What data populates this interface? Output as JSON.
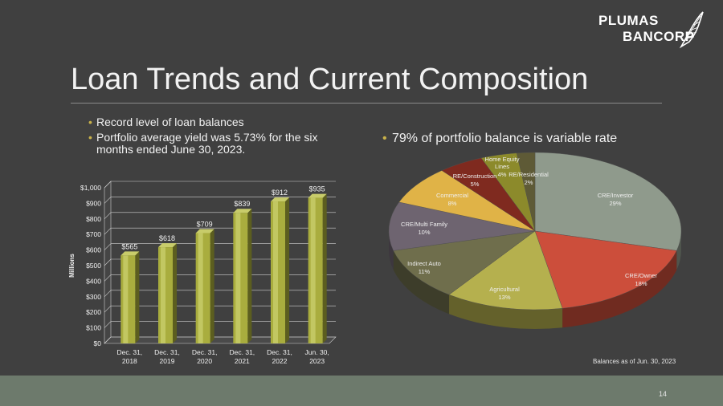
{
  "slide": {
    "title": "Loan Trends and Current Composition",
    "logo": {
      "line1": "PLUMAS",
      "line2": "BANCORP"
    },
    "bullets_left": [
      "Record level of loan balances",
      "Portfolio average yield was 5.73% for the six months ended June 30, 2023."
    ],
    "bullet_right": "79% of portfolio balance is variable rate",
    "note": "Balances as of Jun. 30, 2023",
    "page_number": "14"
  },
  "chart_data": [
    {
      "type": "bar",
      "categories": [
        "Dec. 31,|2018",
        "Dec. 31,|2019",
        "Dec. 31,|2020",
        "Dec. 31,|2021",
        "Dec. 31,|2022",
        "Jun. 30,|2023"
      ],
      "values": [
        565,
        618,
        709,
        839,
        912,
        935
      ],
      "data_labels": [
        "$565",
        "$618",
        "$709",
        "$839",
        "$912",
        "$935"
      ],
      "ylabel": "Millions",
      "ylim": [
        0,
        1000
      ],
      "yticks": [
        "$0",
        "$100",
        "$200",
        "$300",
        "$400",
        "$500",
        "$600",
        "$700",
        "$800",
        "$900",
        "$1,000"
      ],
      "grid": true,
      "bar_color": "#a9ad3e"
    },
    {
      "type": "pie",
      "slices": [
        {
          "label": "CRE/Investor",
          "value": 29,
          "pct": "29%",
          "color": "#8f9a8c"
        },
        {
          "label": "CRE/Owner",
          "value": 18,
          "pct": "18%",
          "color": "#cc4e3b"
        },
        {
          "label": "Agricultural",
          "value": 13,
          "pct": "13%",
          "color": "#b5b04e"
        },
        {
          "label": "Indirect Auto",
          "value": 11,
          "pct": "11%",
          "color": "#6f6e4c"
        },
        {
          "label": "CRE/Multi Family",
          "value": 10,
          "pct": "10%",
          "color": "#6e6470"
        },
        {
          "label": "Commercial",
          "value": 8,
          "pct": "8%",
          "color": "#e0b347"
        },
        {
          "label": "RE/Construction",
          "value": 5,
          "pct": "5%",
          "color": "#7f2a1f"
        },
        {
          "label": "Home Equity Lines",
          "value": 4,
          "pct": "4%",
          "color": "#8c8a2b"
        },
        {
          "label": "RE/Residential",
          "value": 2,
          "pct": "2%",
          "color": "#5e5a36"
        }
      ]
    }
  ]
}
